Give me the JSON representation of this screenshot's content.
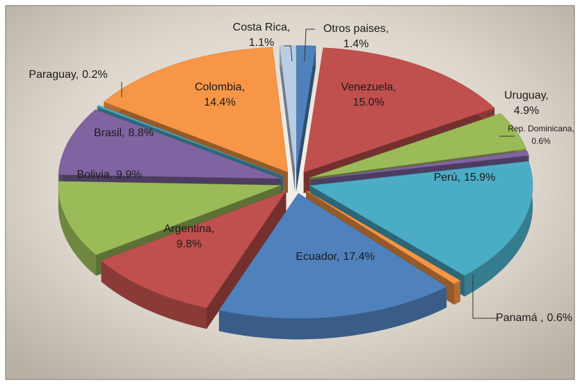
{
  "chart_data": {
    "type": "pie3d",
    "categories": [
      "Otros paises,",
      "Venezuela,",
      "Uruguay,",
      "Rep. Dominicana,",
      "Perú,",
      "Panamá ,",
      "Ecuador,",
      "Argentina,",
      "Bolivia,",
      "Brasil,",
      "Paraguay,",
      "Colombia,",
      "Costa Rica,"
    ],
    "values": [
      1.4,
      15.0,
      4.9,
      0.6,
      15.9,
      0.6,
      17.4,
      9.8,
      9.9,
      8.8,
      0.2,
      14.4,
      1.1
    ],
    "value_labels": [
      "1.4%",
      "15.0%",
      "4.9%",
      "0.6%",
      "15.9%",
      "0.6%",
      "17.4%",
      "9.8%",
      "9.9%",
      "8.8%",
      "0.2%",
      "14.4%",
      "1.1%"
    ],
    "colors": [
      "#4f81bd",
      "#c0504d",
      "#9bbb59",
      "#8064a2",
      "#4bacc6",
      "#f79646",
      "#4f81bd",
      "#c0504d",
      "#9bbb59",
      "#8064a2",
      "#4bacc6",
      "#f79646",
      "#b9cde5"
    ]
  }
}
